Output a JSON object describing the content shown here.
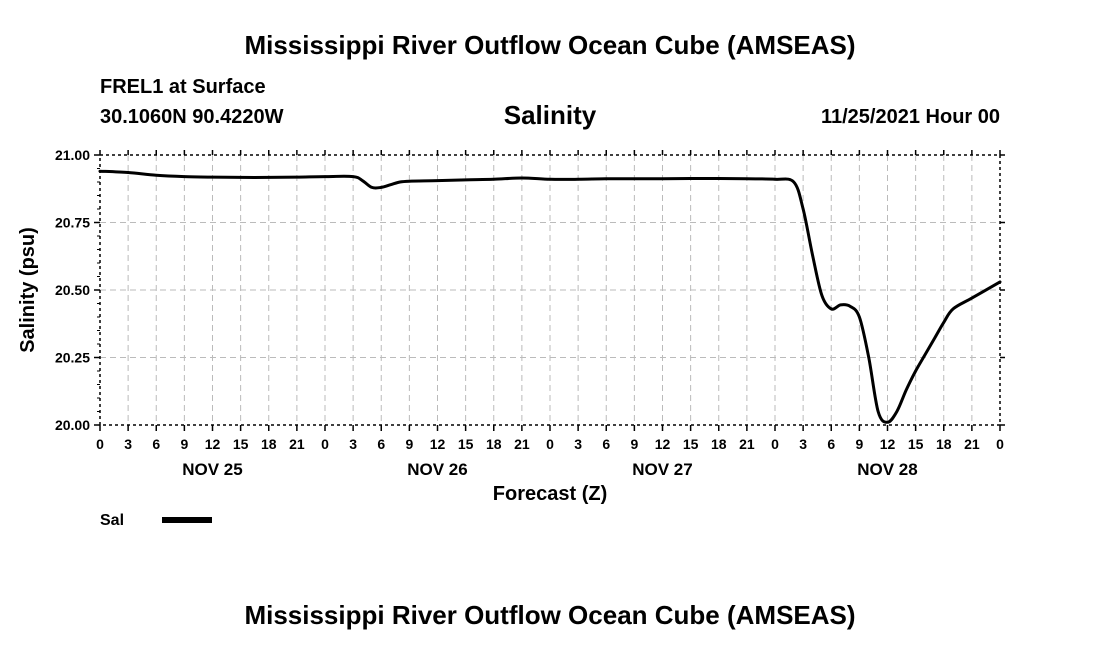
{
  "header": {
    "title": "Mississippi River Outflow Ocean Cube (AMSEAS)",
    "station": "FREL1 at Surface",
    "coords": "30.1060N  90.4220W",
    "date": "11/25/2021 Hour 00",
    "footer_title": "Mississippi River Outflow Ocean Cube (AMSEAS)"
  },
  "chart_data": {
    "type": "line",
    "title": "Salinity",
    "xlabel": "Forecast (Z)",
    "ylabel": "Salinity (psu)",
    "ylim": [
      20.0,
      21.0
    ],
    "xlim": [
      0,
      96
    ],
    "y_ticks": [
      "21.00",
      "20.75",
      "20.50",
      "20.25",
      "20.00"
    ],
    "x_tick_labels": [
      "0",
      "3",
      "6",
      "9",
      "12",
      "15",
      "18",
      "21",
      "0",
      "3",
      "6",
      "9",
      "12",
      "15",
      "18",
      "21",
      "0",
      "3",
      "6",
      "9",
      "12",
      "15",
      "18",
      "21",
      "0",
      "3",
      "6",
      "9",
      "12",
      "15",
      "18",
      "21",
      "0"
    ],
    "day_labels": [
      "NOV 25",
      "NOV 26",
      "NOV 27",
      "NOV 28"
    ],
    "grid": true,
    "legend": {
      "label": "Sal",
      "position": "bottom-left"
    },
    "series": [
      {
        "name": "Sal",
        "x": [
          0,
          3,
          6,
          9,
          12,
          15,
          18,
          21,
          24,
          27,
          28,
          29,
          30,
          31,
          32,
          33,
          36,
          39,
          42,
          45,
          48,
          51,
          54,
          57,
          60,
          63,
          66,
          69,
          72,
          74,
          75,
          76,
          77,
          78,
          79,
          80,
          81,
          82,
          83,
          84,
          85,
          86,
          87,
          88,
          89,
          90,
          91,
          93,
          96
        ],
        "values": [
          20.94,
          20.935,
          20.925,
          20.92,
          20.918,
          20.917,
          20.917,
          20.918,
          20.92,
          20.92,
          20.905,
          20.88,
          20.88,
          20.89,
          20.9,
          20.903,
          20.905,
          20.908,
          20.91,
          20.915,
          20.91,
          20.91,
          20.912,
          20.912,
          20.912,
          20.913,
          20.913,
          20.912,
          20.91,
          20.9,
          20.8,
          20.63,
          20.48,
          20.43,
          20.445,
          20.44,
          20.4,
          20.25,
          20.05,
          20.01,
          20.05,
          20.13,
          20.2,
          20.26,
          20.32,
          20.38,
          20.43,
          20.47,
          20.53
        ]
      }
    ]
  }
}
